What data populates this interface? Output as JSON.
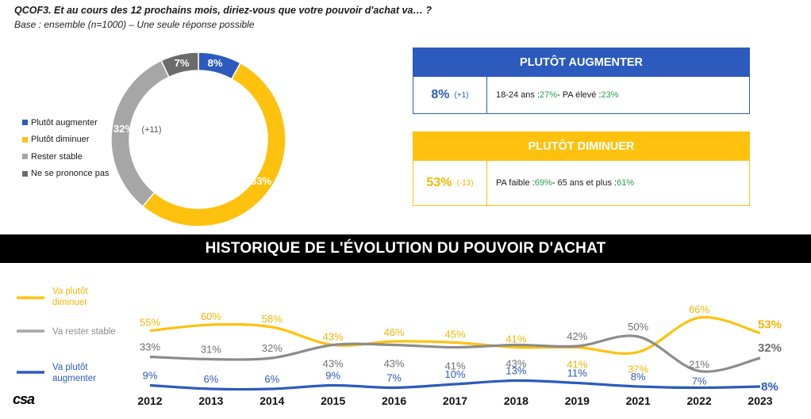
{
  "header": {
    "question": "QCOF3. Et au cours des 12 prochains mois, diriez-vous que votre pouvoir d'achat va… ?",
    "base": "Base : ensemble (n=1000) – Une seule réponse possible"
  },
  "donut": {
    "legend": [
      {
        "label": "Plutôt augmenter",
        "color": "#2c5bbd"
      },
      {
        "label": "Plutôt diminuer",
        "color": "#fec20e"
      },
      {
        "label": "Rester stable",
        "color": "#a6a6a6"
      },
      {
        "label": "Ne se prononce pas",
        "color": "#6b6b6b"
      }
    ],
    "labels": {
      "augmenter": "8%",
      "diminuer": "53%",
      "stable": "32%",
      "stable_delta": "(+11)",
      "nsp": "7%"
    }
  },
  "box_augmenter": {
    "title": "PLUTÔT AUGMENTER",
    "value": "8%",
    "delta": "(+1)",
    "detail_1": "18-24 ans : ",
    "detail_1_value": "27%",
    "detail_sep": " - PA élevé : ",
    "detail_2_value": "23%",
    "color": "#2c5bbd"
  },
  "box_diminuer": {
    "title": "PLUTÔT DIMINUER",
    "value": "53%",
    "delta": "(-13)",
    "detail_1": "PA faible : ",
    "detail_1_value": "69%",
    "detail_sep": " - 65 ans et plus : ",
    "detail_2_value": "61%",
    "color": "#fec20e"
  },
  "history": {
    "title": "HISTORIQUE DE L'ÉVOLUTION DU POUVOIR D'ACHAT",
    "legend": [
      {
        "label_1": "Va plutôt",
        "label_2": "diminuer",
        "color": "#fec20e"
      },
      {
        "label_1": "Va rester stable",
        "label_2": "",
        "color": "#a6a6a6"
      },
      {
        "label_1": "Va plutôt",
        "label_2": "augmenter",
        "color": "#2c5bbd"
      }
    ]
  },
  "logo": "csa",
  "chart_data": [
    {
      "type": "pie",
      "categories": [
        "Plutôt augmenter",
        "Plutôt diminuer",
        "Rester stable",
        "Ne se prononce pas"
      ],
      "values": [
        8,
        53,
        32,
        7
      ],
      "colors": [
        "#2c5bbd",
        "#fec20e",
        "#a6a6a6",
        "#6b6b6b"
      ]
    },
    {
      "type": "line",
      "x": [
        "2012",
        "2013",
        "2014",
        "2015",
        "2016",
        "2017",
        "2018",
        "2019",
        "2021",
        "2022",
        "2023"
      ],
      "series": [
        {
          "name": "Va plutôt diminuer",
          "color": "#fec20e",
          "label_color": "#f2b705",
          "values": [
            55,
            60,
            58,
            43,
            46,
            45,
            41,
            41,
            37,
            66,
            53
          ]
        },
        {
          "name": "Va rester stable",
          "color": "#8c8c8c",
          "label_color": "#6f6f6f",
          "values": [
            33,
            31,
            32,
            43,
            43,
            41,
            43,
            42,
            50,
            21,
            32
          ]
        },
        {
          "name": "Va plutôt augmenter",
          "color": "#2c5bbd",
          "label_color": "#2c5bbd",
          "values": [
            9,
            6,
            6,
            9,
            7,
            10,
            13,
            11,
            8,
            7,
            8
          ]
        }
      ],
      "ylim": [
        0,
        70
      ]
    }
  ]
}
